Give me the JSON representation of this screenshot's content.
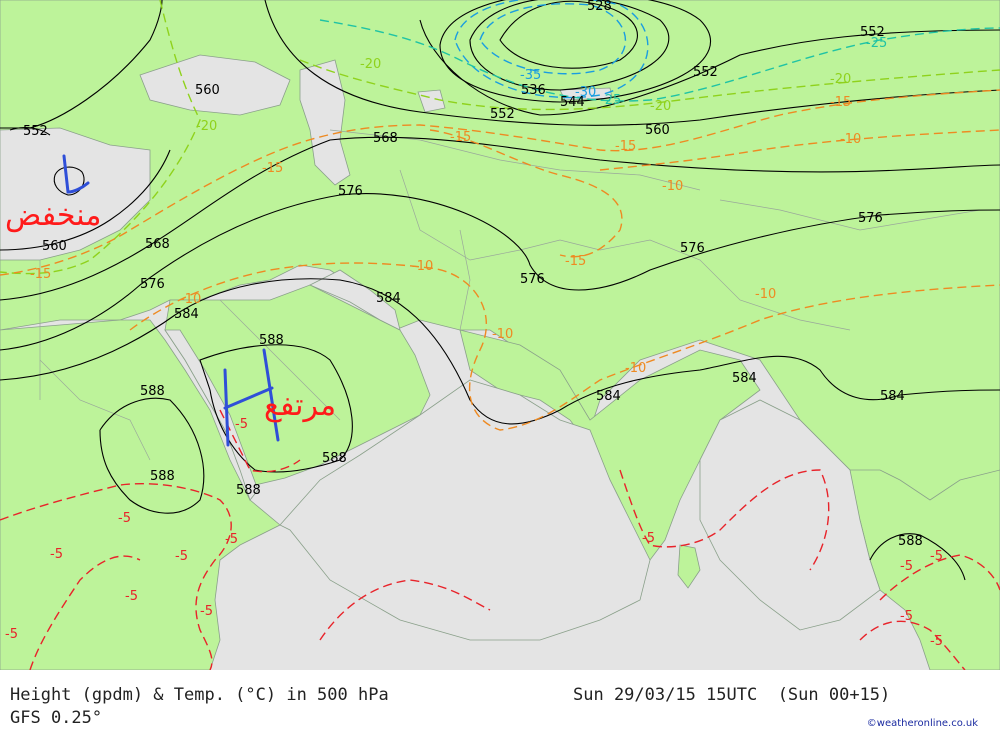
{
  "colors": {
    "sea": "#e4e4e4",
    "land": "#bdf39a",
    "height_contour": "#000000",
    "temp_minus5": "#e8232a",
    "temp_minus10": "#ee8a22",
    "temp_minus15": "#ee8a22",
    "temp_minus20": "#8fd21c",
    "temp_minus25": "#1fc3a4",
    "temp_minus35": "#1a9de0",
    "annotation_ink": "#2f4fd8",
    "annotation_text": "#ff1a1a"
  },
  "footer": {
    "title": "Height (gpdm) & Temp. (°C) in 500 hPa",
    "datetime": "Sun 29/03/15 15UTC  (Sun 00+15)",
    "model": "GFS 0.25°",
    "credit": "©weatheronline.co.uk"
  },
  "annotations": {
    "low_label": "منخفض",
    "high_label": "مرتفع"
  },
  "height_labels": [
    "528",
    "552",
    "552",
    "552",
    "552",
    "560",
    "560",
    "560",
    "568",
    "568",
    "576",
    "576",
    "576",
    "576",
    "584",
    "584",
    "584",
    "584",
    "584",
    "588",
    "588",
    "588",
    "588",
    "588",
    "536",
    "544"
  ],
  "temp_labels": [
    "-35",
    "-30",
    "-25",
    "-25",
    "-20",
    "-20",
    "-20",
    "-20",
    "-15",
    "-15",
    "-15",
    "-15",
    "-15",
    "-15",
    "-10",
    "-10",
    "-10",
    "-10",
    "-10",
    "-10",
    "-10",
    "-5",
    "-5",
    "-5",
    "-5",
    "-5",
    "-5",
    "-5",
    "-5",
    "-5",
    "-5",
    "-5",
    "-5",
    "-5"
  ]
}
